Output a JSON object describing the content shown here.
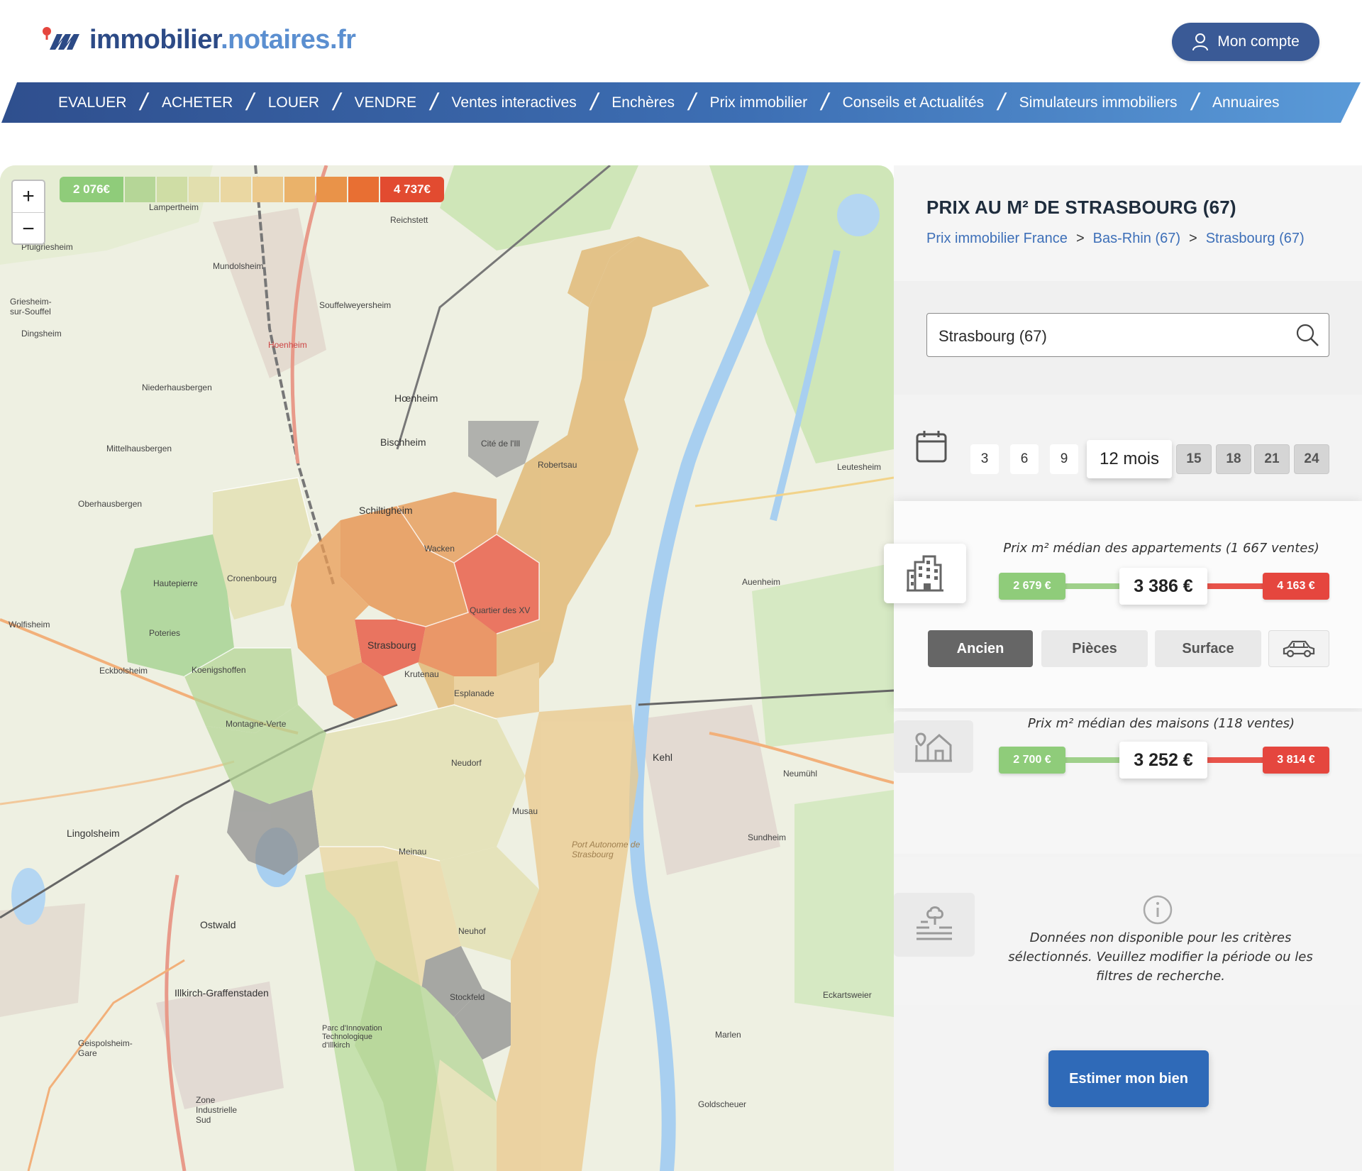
{
  "brand": {
    "name_part1": "immobilier",
    "name_part2": ".notaires.fr"
  },
  "account": {
    "label": "Mon compte"
  },
  "nav": {
    "items": [
      "EVALUER",
      "ACHETER",
      "LOUER",
      "VENDRE",
      "Ventes interactives",
      "Enchères",
      "Prix immobilier",
      "Conseils et Actualités",
      "Simulateurs immobiliers",
      "Annuaires"
    ]
  },
  "map": {
    "zoom_in": "+",
    "zoom_out": "−",
    "legend": {
      "min": "2 076€",
      "max": "4 737€",
      "colors": [
        "#8fcc7a",
        "#b5d697",
        "#cfdda5",
        "#e2dfae",
        "#ead7a2",
        "#ebc98c",
        "#eab26a",
        "#e99349",
        "#e86f33",
        "#e24b30"
      ]
    },
    "labels": [
      "Lampertheim",
      "Reichstett",
      "Mundolsheim",
      "Souffelweyersheim",
      "Pfulgriesheim",
      "Griesheim-sur-Souffel",
      "Dingsheim",
      "Niederhausbergen",
      "Hœnheim",
      "Bischheim",
      "Mittelhausbergen",
      "Schiltigheim",
      "Oberhausbergen",
      "Cité de l'Ill",
      "Robertsau",
      "Wacken",
      "Hautepierre",
      "Cronenbourg",
      "Poteries",
      "Quartier des XV",
      "Strasbourg",
      "Krutenau",
      "Koenigshoffen",
      "Eckbolsheim",
      "Wolfisheim",
      "Esplanade",
      "Montagne-Verte",
      "Neudorf",
      "Musau",
      "Lingolsheim",
      "Meinau",
      "Ostwald",
      "Neuhof",
      "Illkirch-Graffenstaden",
      "Stockfeld",
      "Geispolsheim-Gare",
      "Kehl",
      "Neumühl",
      "Sundheim",
      "Auenheim",
      "Leutesheim",
      "Marlen",
      "Eckartsweier",
      "Goldscheuer",
      "Port Autonome de Strasbourg",
      "Hoenheim",
      "Zone Industrielle Sud",
      "Parc d'Innovation Technologique d'Illkirch"
    ]
  },
  "sidebar": {
    "title": "PRIX AU M² DE STRASBOURG (67)",
    "breadcrumb": [
      "Prix immobilier France",
      "Bas-Rhin (67)",
      "Strasbourg (67)"
    ],
    "breadcrumb_sep": ">",
    "search": {
      "value": "Strasbourg (67)"
    },
    "period": {
      "options": [
        "3",
        "6",
        "9",
        "12 mois",
        "15",
        "18",
        "21",
        "24"
      ],
      "selected": "12 mois"
    },
    "apartments": {
      "caption": "Prix m² médian des appartements",
      "count": "(1 667 ventes)",
      "min": "2 679 €",
      "median": "3 386 €",
      "max": "4 163 €"
    },
    "filters": [
      "Ancien",
      "Pièces",
      "Surface"
    ],
    "houses": {
      "caption": "Prix m² médian des maisons",
      "count": "(118 ventes)",
      "min": "2 700 €",
      "median": "3 252 €",
      "max": "3 814 €"
    },
    "land": {
      "message": "Données non disponible pour les critères sélectionnés. Veuillez modifier la période ou les filtres de recherche."
    },
    "cta": "Estimer mon bien"
  }
}
